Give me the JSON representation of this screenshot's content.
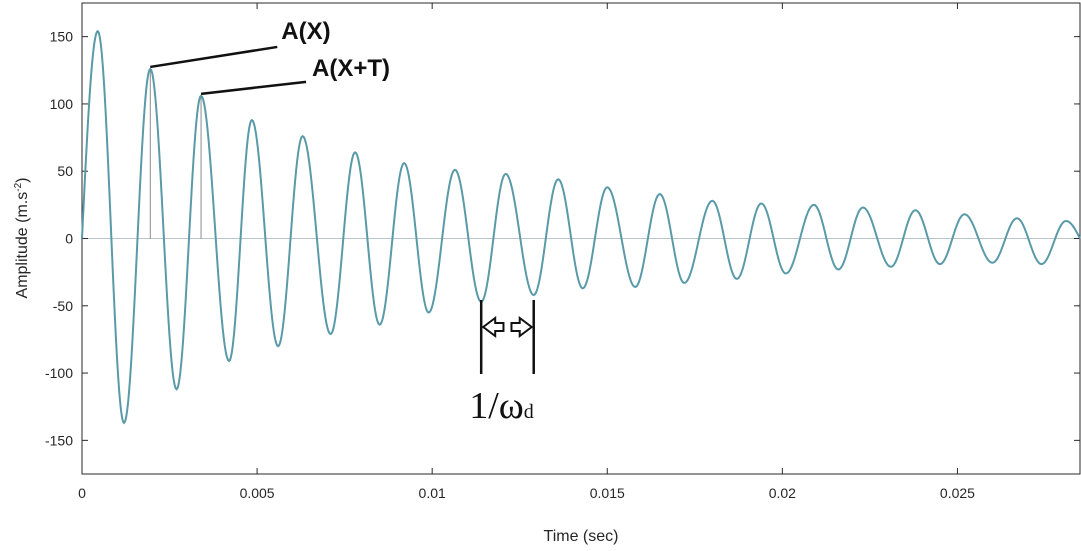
{
  "chart_data": {
    "type": "line",
    "xlabel": "Time (sec)",
    "ylabel_main": "Amplitude (m.s",
    "ylabel_sup": "-2",
    "ylabel_close": ")",
    "xlim": [
      0,
      0.0285
    ],
    "ylim": [
      -175,
      175
    ],
    "xticks": [
      0,
      0.005,
      0.01,
      0.015,
      0.02,
      0.025
    ],
    "xtick_labels": [
      "0",
      "0.005",
      "0.01",
      "0.015",
      "0.02",
      "0.025"
    ],
    "yticks": [
      150,
      100,
      50,
      0,
      -50,
      -100,
      -150
    ],
    "ytick_labels": [
      "150",
      "100",
      "50",
      "0",
      "-50",
      "-100",
      "-150"
    ],
    "grid": false,
    "zero_line": true,
    "series": [
      {
        "color": "#5a9aa8",
        "peaks": [
          [
            0.00045,
            154
          ],
          [
            0.0012,
            -137
          ],
          [
            0.00195,
            126
          ],
          [
            0.0027,
            -112
          ],
          [
            0.0034,
            106
          ],
          [
            0.0042,
            -91
          ],
          [
            0.00485,
            88
          ],
          [
            0.0056,
            -80
          ],
          [
            0.0063,
            76
          ],
          [
            0.0071,
            -71
          ],
          [
            0.0078,
            64
          ],
          [
            0.0085,
            -64
          ],
          [
            0.0092,
            56
          ],
          [
            0.0099,
            -55
          ],
          [
            0.01065,
            51
          ],
          [
            0.0114,
            -47
          ],
          [
            0.0121,
            48
          ],
          [
            0.0129,
            -42
          ],
          [
            0.0136,
            44
          ],
          [
            0.0143,
            -37
          ],
          [
            0.015,
            38
          ],
          [
            0.0158,
            -36
          ],
          [
            0.0165,
            33
          ],
          [
            0.0172,
            -33
          ],
          [
            0.018,
            28
          ],
          [
            0.0187,
            -30
          ],
          [
            0.0194,
            26
          ],
          [
            0.0201,
            -26
          ],
          [
            0.0209,
            25
          ],
          [
            0.0216,
            -23
          ],
          [
            0.0223,
            23
          ],
          [
            0.0231,
            -21
          ],
          [
            0.0238,
            21
          ],
          [
            0.0245,
            -19
          ],
          [
            0.0252,
            18
          ],
          [
            0.026,
            -18
          ],
          [
            0.0267,
            15
          ],
          [
            0.0274,
            -19
          ],
          [
            0.0281,
            13
          ]
        ],
        "end": [
          0.0285,
          0
        ]
      }
    ],
    "annotations": {
      "ax": {
        "text": "A(X)",
        "x": 0.00195,
        "y": 126
      },
      "axt": {
        "text": "A(X+T)",
        "x": 0.0034,
        "y": 106
      },
      "omega": {
        "main": "1/ω",
        "sub": "d",
        "x1": 0.0114,
        "x2": 0.0129
      }
    }
  }
}
